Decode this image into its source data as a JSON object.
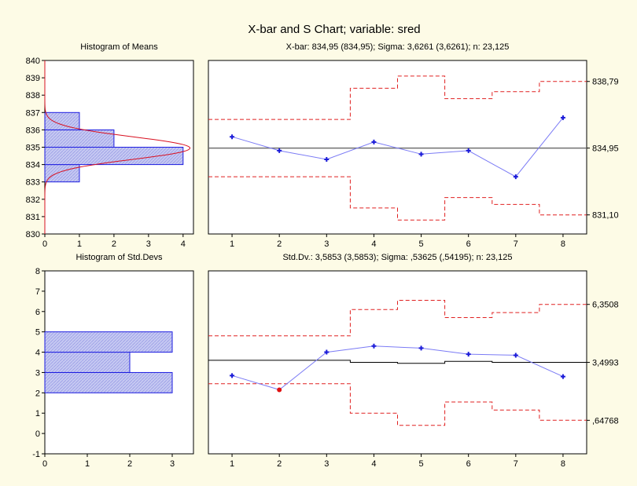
{
  "title": "X-bar and S Chart; variable:     sred",
  "colors": {
    "background": "#fdfbe6",
    "bar_fill": "#c6c9f2",
    "bar_stroke": "#1c1ce0",
    "series_line": "#7b7bf5",
    "point": "#1a1ad8",
    "out_point": "#e01010",
    "limit": "#e02020",
    "center": "#707070",
    "normal_curve": "#d81020"
  },
  "chart_data": [
    {
      "id": "hist-means",
      "type": "bar",
      "orientation": "horizontal",
      "title": "Histogram of Means",
      "categories": [
        "833-834",
        "834-835",
        "835-836",
        "836-837"
      ],
      "bins": [
        [
          833,
          834
        ],
        [
          834,
          835
        ],
        [
          835,
          836
        ],
        [
          836,
          837
        ]
      ],
      "values": [
        1,
        4,
        2,
        1
      ],
      "xlim": [
        0,
        4.3
      ],
      "xticks": [
        "0",
        "1",
        "2",
        "3",
        "4"
      ],
      "ylim": [
        830,
        840
      ],
      "yticks": [
        "830",
        "831",
        "832",
        "833",
        "834",
        "835",
        "836",
        "837",
        "838",
        "839",
        "840"
      ],
      "normal_curve": {
        "mean": 834.95,
        "sd": 0.65,
        "peak": 4.2
      }
    },
    {
      "id": "xbar-chart",
      "type": "line",
      "title": "X-bar: 834,95 (834,95); Sigma: 3,6261 (3,6261); n: 23,125",
      "x": [
        1,
        2,
        3,
        4,
        5,
        6,
        7,
        8
      ],
      "values": [
        835.6,
        834.8,
        834.3,
        835.3,
        834.6,
        834.8,
        833.3,
        836.7
      ],
      "xlim": [
        0.5,
        8.5
      ],
      "ylim": [
        830,
        840
      ],
      "xticks": [
        "1",
        "2",
        "3",
        "4",
        "5",
        "6",
        "7",
        "8"
      ],
      "center": 834.95,
      "ucl": [
        836.6,
        836.6,
        836.6,
        838.4,
        839.1,
        837.8,
        838.2,
        838.79
      ],
      "lcl": [
        833.3,
        833.3,
        833.3,
        831.5,
        830.8,
        832.1,
        831.7,
        831.1
      ],
      "right_labels": [
        {
          "text": "838,79",
          "y": 838.79
        },
        {
          "text": "834,95",
          "y": 834.95
        },
        {
          "text": "831,10",
          "y": 831.1
        }
      ]
    },
    {
      "id": "hist-sd",
      "type": "bar",
      "orientation": "horizontal",
      "title": "Histogram of Std.Devs",
      "categories": [
        "2-3",
        "3-4",
        "4-5"
      ],
      "bins": [
        [
          2,
          3
        ],
        [
          3,
          4
        ],
        [
          4,
          5
        ]
      ],
      "values": [
        3,
        2,
        3
      ],
      "xlim": [
        0,
        3.5
      ],
      "xticks": [
        "0",
        "1",
        "2",
        "3"
      ],
      "ylim": [
        -1,
        8
      ],
      "yticks": [
        "-1",
        "0",
        "1",
        "2",
        "3",
        "4",
        "5",
        "6",
        "7",
        "8"
      ]
    },
    {
      "id": "s-chart",
      "type": "line",
      "title": "Std.Dv.: 3,5853 (3,5853); Sigma: ,53625 (,54195); n: 23,125",
      "x": [
        1,
        2,
        3,
        4,
        5,
        6,
        7,
        8
      ],
      "values": [
        2.85,
        2.15,
        4.0,
        4.3,
        4.2,
        3.9,
        3.85,
        2.8
      ],
      "out_of_control": [
        2
      ],
      "xlim": [
        0.5,
        8.5
      ],
      "ylim": [
        -1,
        8
      ],
      "xticks": [
        "1",
        "2",
        "3",
        "4",
        "5",
        "6",
        "7",
        "8"
      ],
      "center_steps": [
        3.6,
        3.6,
        3.6,
        3.5,
        3.45,
        3.55,
        3.5,
        3.4993
      ],
      "ucl": [
        4.8,
        4.8,
        4.8,
        6.1,
        6.55,
        5.7,
        5.95,
        6.35
      ],
      "lcl": [
        2.45,
        2.45,
        2.45,
        1.0,
        0.4,
        1.55,
        1.15,
        0.65
      ],
      "right_labels": [
        {
          "text": "6,3508",
          "y": 6.3508
        },
        {
          "text": "3,4993",
          "y": 3.4993
        },
        {
          "text": ",64768",
          "y": 0.64768
        }
      ]
    }
  ]
}
